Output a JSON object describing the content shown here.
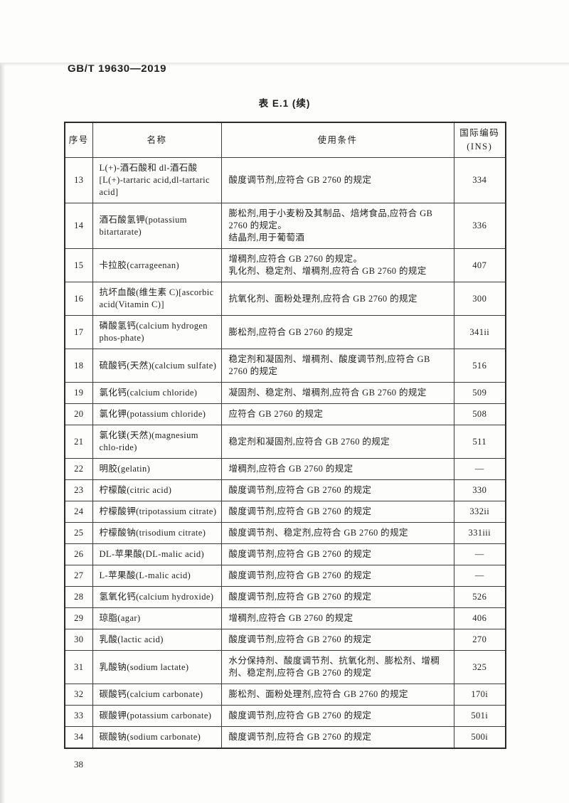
{
  "page": {
    "doc_number": "GB/T 19630—2019",
    "table_title": "表 E.1 (续)",
    "page_number": "38"
  },
  "table": {
    "headers": {
      "no": "序号",
      "name": "名称",
      "condition": "使用条件",
      "ins_line1": "国际编码",
      "ins_line2": "(INS)"
    },
    "rows": [
      {
        "no": "13",
        "name": "L(+)-酒石酸和 dl-酒石酸[L(+)-tartaric acid,dl-tartaric acid]",
        "condition": "酸度调节剂,应符合 GB 2760 的规定",
        "ins": "334"
      },
      {
        "no": "14",
        "name": "酒石酸氢钾(potassium bitartarate)",
        "condition": [
          "膨松剂,用于小麦粉及其制品、焙烤食品,应符合 GB 2760 的规定。",
          "结晶剂,用于葡萄酒"
        ],
        "ins": "336"
      },
      {
        "no": "15",
        "name": "卡拉胶(carrageenan)",
        "condition": [
          "增稠剂,应符合 GB 2760 的规定。",
          "乳化剂、稳定剂、增稠剂,应符合 GB 2760 的规定"
        ],
        "ins": "407"
      },
      {
        "no": "16",
        "name": "抗坏血酸(维生素 C)[ascorbic acid(Vitamin C)]",
        "condition": "抗氧化剂、面粉处理剂,应符合 GB 2760 的规定",
        "ins": "300"
      },
      {
        "no": "17",
        "name": "磷酸氢钙(calcium hydrogen phos-phate)",
        "condition": "膨松剂,应符合 GB 2760 的规定",
        "ins": "341ii"
      },
      {
        "no": "18",
        "name": "硫酸钙(天然)(calcium sulfate)",
        "condition": "稳定剂和凝固剂、增稠剂、酸度调节剂,应符合 GB 2760 的规定",
        "ins": "516"
      },
      {
        "no": "19",
        "name": "氯化钙(calcium chloride)",
        "condition": "凝固剂、稳定剂、增稠剂,应符合 GB 2760 的规定",
        "ins": "509"
      },
      {
        "no": "20",
        "name": "氯化钾(potassium chloride)",
        "condition": "应符合 GB 2760 的规定",
        "ins": "508"
      },
      {
        "no": "21",
        "name": "氯化镁(天然)(magnesium chlo-ride)",
        "condition": "稳定剂和凝固剂,应符合 GB 2760 的规定",
        "ins": "511"
      },
      {
        "no": "22",
        "name": "明胶(gelatin)",
        "condition": "增稠剂,应符合 GB 2760 的规定",
        "ins": "—"
      },
      {
        "no": "23",
        "name": "柠檬酸(citric acid)",
        "condition": "酸度调节剂,应符合 GB 2760 的规定",
        "ins": "330"
      },
      {
        "no": "24",
        "name": "柠檬酸钾(tripotassium citrate)",
        "condition": "酸度调节剂,应符合 GB 2760 的规定",
        "ins": "332ii"
      },
      {
        "no": "25",
        "name": "柠檬酸钠(trisodium citrate)",
        "condition": "酸度调节剂、稳定剂,应符合 GB 2760 的规定",
        "ins": "331iii"
      },
      {
        "no": "26",
        "name": "DL-苹果酸(DL-malic acid)",
        "condition": "酸度调节剂,应符合 GB 2760 的规定",
        "ins": "—"
      },
      {
        "no": "27",
        "name": "L-苹果酸(L-malic acid)",
        "condition": "酸度调节剂,应符合 GB 2760 的规定",
        "ins": "—"
      },
      {
        "no": "28",
        "name": "氢氧化钙(calcium hydroxide)",
        "condition": "酸度调节剂,应符合 GB 2760 的规定",
        "ins": "526"
      },
      {
        "no": "29",
        "name": "琼脂(agar)",
        "condition": "增稠剂,应符合 GB 2760 的规定",
        "ins": "406"
      },
      {
        "no": "30",
        "name": "乳酸(lactic acid)",
        "condition": "酸度调节剂,应符合 GB 2760 的规定",
        "ins": "270"
      },
      {
        "no": "31",
        "name": "乳酸钠(sodium lactate)",
        "condition": "水分保持剂、酸度调节剂、抗氧化剂、膨松剂、增稠剂、稳定剂,应符合 GB 2760 的规定",
        "ins": "325"
      },
      {
        "no": "32",
        "name": "碳酸钙(calcium carbonate)",
        "condition": "膨松剂、面粉处理剂,应符合 GB 2760 的规定",
        "ins": "170i"
      },
      {
        "no": "33",
        "name": "碳酸钾(potassium carbonate)",
        "condition": "酸度调节剂,应符合 GB 2760 的规定",
        "ins": "501i"
      },
      {
        "no": "34",
        "name": "碳酸钠(sodium carbonate)",
        "condition": "酸度调节剂,应符合 GB 2760 的规定",
        "ins": "500i"
      }
    ]
  }
}
